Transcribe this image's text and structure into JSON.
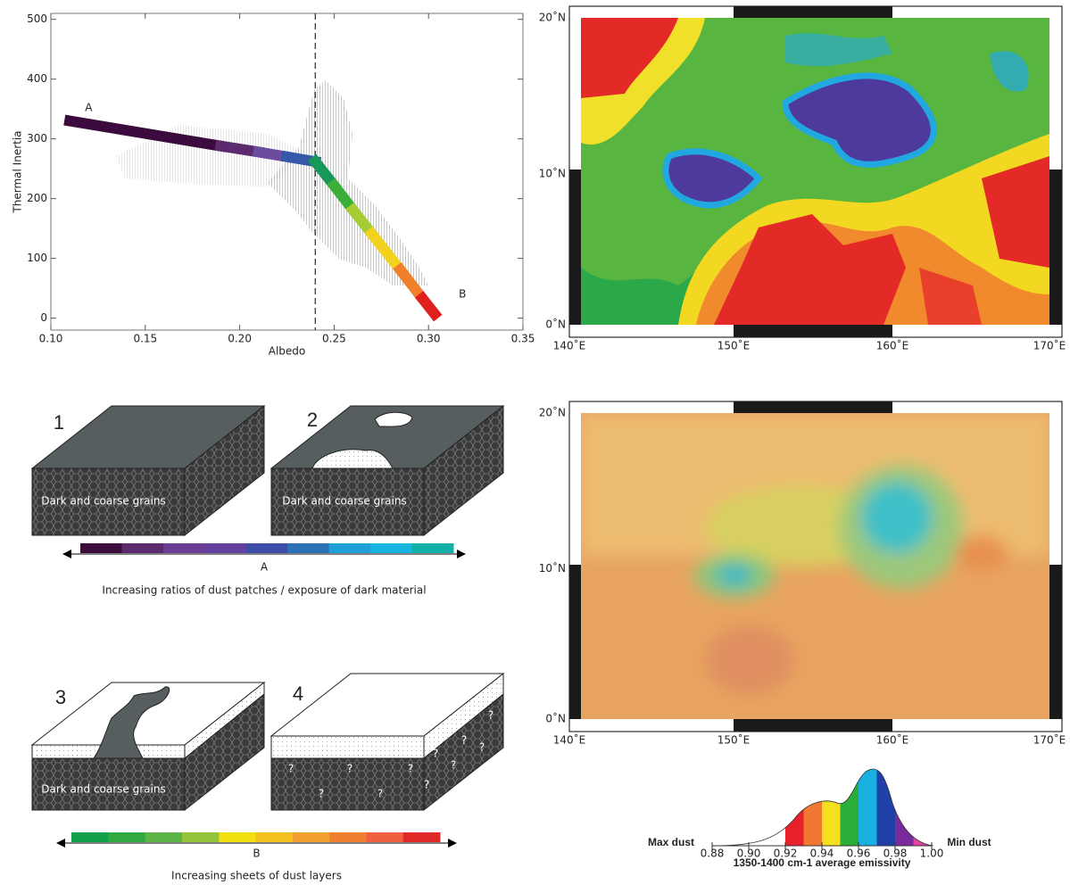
{
  "chart_data": {
    "type": "line",
    "xlabel": "Albedo",
    "ylabel": "Thermal Inertia",
    "x": [
      0.11,
      0.19,
      0.21,
      0.225,
      0.24,
      0.25,
      0.26,
      0.27,
      0.285,
      0.295,
      0.305
    ],
    "series": [
      {
        "values": [
          330,
          288,
          278,
          270,
          262,
          222,
          181,
          141,
          81,
          40,
          0
        ],
        "segment_colors": [
          "#3a0b3c",
          "#5b2b6e",
          "#6c4c9c",
          "#3658a8",
          "#179858",
          "#3cae3a",
          "#a6cc34",
          "#f2d21e",
          "#f0802c",
          "#e01f1f"
        ]
      }
    ],
    "annotations": [
      {
        "text": "A",
        "x": 0.12,
        "y": 352
      },
      {
        "text": "B",
        "x": 0.318,
        "y": 40
      }
    ],
    "vline": 0.24,
    "xlim": [
      0.1,
      0.35
    ],
    "ylim": [
      -20,
      510
    ],
    "xticks": [
      {
        "value": 0.1,
        "label": "0.10"
      },
      {
        "value": 0.15,
        "label": "0.15"
      },
      {
        "value": 0.2,
        "label": "0.20"
      },
      {
        "value": 0.25,
        "label": "0.25"
      },
      {
        "value": 0.3,
        "label": "0.30"
      },
      {
        "value": 0.35,
        "label": "0.35"
      }
    ],
    "yticks": [
      0,
      100,
      200,
      300,
      400,
      500
    ]
  },
  "maps": [
    {
      "lat_labels": [
        "20˚N",
        "10˚N",
        "0˚N"
      ],
      "lon_labels": [
        "140˚E",
        "150˚E",
        "160˚E",
        "170˚E"
      ]
    },
    {
      "lat_labels": [
        "20˚N",
        "10˚N",
        "0˚N"
      ],
      "lon_labels": [
        "140˚E",
        "150˚E",
        "160˚E",
        "170˚E"
      ]
    }
  ],
  "diagram": {
    "panel_labels": [
      "1",
      "2",
      "3",
      "4"
    ],
    "grain_labels": [
      "Dark and coarse grains",
      "Dark and coarse grains",
      "Dark and coarse grains"
    ],
    "question_marks": [
      "?",
      "?",
      "?",
      "?",
      "?",
      "?",
      "?",
      "?",
      "?",
      "?",
      "?"
    ],
    "scale_a": {
      "label": "A",
      "caption": "Increasing ratios of dust patches / exposure of dark material",
      "colors": [
        "#3b0c3c",
        "#5c2a6c",
        "#6a3c94",
        "#6440a0",
        "#3c4ca8",
        "#2c70b8",
        "#20a0d8",
        "#18b4e0",
        "#10b0a8"
      ]
    },
    "scale_b": {
      "label": "B",
      "caption": "Increasing sheets of dust layers",
      "colors": [
        "#10a04a",
        "#30aa40",
        "#5cb444",
        "#94c43c",
        "#f0e010",
        "#f4c020",
        "#f0a030",
        "#f08030",
        "#f06040",
        "#e02a2a"
      ]
    }
  },
  "emissivity_legend": {
    "left": "Max dust",
    "right": "Min dust",
    "title": "1350-1400 cm-1 average emissivity",
    "ticks": [
      {
        "value": 0.88,
        "label": "0.88"
      },
      {
        "value": 0.9,
        "label": "0.90"
      },
      {
        "value": 0.92,
        "label": "0.92"
      },
      {
        "value": 0.94,
        "label": "0.94"
      },
      {
        "value": 0.96,
        "label": "0.96"
      },
      {
        "value": 0.98,
        "label": "0.98"
      },
      {
        "value": 1.0,
        "label": "1.00"
      }
    ],
    "colors": [
      "#e8202a",
      "#f07830",
      "#f4e020",
      "#2aae3a",
      "#18b0e0",
      "#2040a8",
      "#7a2a9a",
      "#e040a0"
    ]
  }
}
